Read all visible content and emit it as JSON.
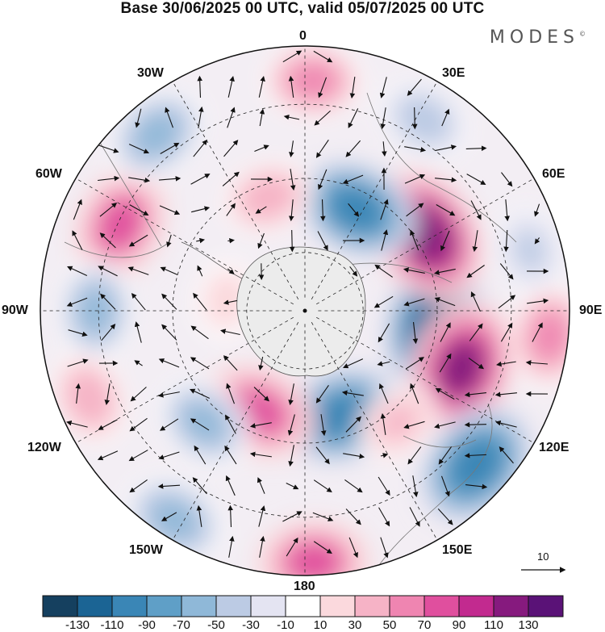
{
  "title": "Base 30/06/2025 00 UTC, valid 05/07/2025 00 UTC",
  "brand": "MODES",
  "brand_mark": "©",
  "longitude_labels": {
    "top": "0",
    "upper_right": "30E",
    "right_upper": "60E",
    "right": "90E",
    "right_lower": "120E",
    "lower_right": "150E",
    "bottom": "180",
    "lower_left": "150W",
    "left_lower": "120W",
    "left": "90W",
    "left_upper": "60W",
    "upper_left": "30W"
  },
  "vector_scale_label": "10",
  "colorbar": {
    "colors": [
      "#15405f",
      "#1b6494",
      "#3a86b6",
      "#5f9fc7",
      "#8fb8d8",
      "#bccbe4",
      "#e4e4f2",
      "#ffffff",
      "#fbd9dd",
      "#f6b3c6",
      "#ef85b1",
      "#e04f9e",
      "#c22a8f",
      "#861a7e",
      "#5a1277"
    ],
    "tick_labels": [
      "-130",
      "-110",
      "-90",
      "-70",
      "-50",
      "-30",
      "-10",
      "10",
      "30",
      "50",
      "70",
      "90",
      "110",
      "130"
    ]
  },
  "anomaly_centers": [
    {
      "lon_deg": 98,
      "r_frac": 0.5,
      "value": -130
    },
    {
      "lon_deg": 58,
      "r_frac": 0.54,
      "value": 120
    },
    {
      "lon_deg": 110,
      "r_frac": 0.63,
      "value": 115
    },
    {
      "lon_deg": 132,
      "r_frac": 0.87,
      "value": -110
    },
    {
      "lon_deg": 160,
      "r_frac": 0.42,
      "value": -100
    },
    {
      "lon_deg": 27,
      "r_frac": 0.43,
      "value": -95
    },
    {
      "lon_deg": 205,
      "r_frac": 0.42,
      "value": 85
    },
    {
      "lon_deg": 295,
      "r_frac": 0.77,
      "value": 80
    },
    {
      "lon_deg": 2,
      "r_frac": 0.87,
      "value": 55
    },
    {
      "lon_deg": 270,
      "r_frac": 0.79,
      "value": -55
    },
    {
      "lon_deg": 320,
      "r_frac": 0.87,
      "value": -65
    },
    {
      "lon_deg": 222,
      "r_frac": 0.57,
      "value": -55
    },
    {
      "lon_deg": 212,
      "r_frac": 0.93,
      "value": -65
    },
    {
      "lon_deg": 178,
      "r_frac": 0.95,
      "value": 75
    },
    {
      "lon_deg": 342,
      "r_frac": 0.45,
      "value": 40
    },
    {
      "lon_deg": 248,
      "r_frac": 0.88,
      "value": 45
    },
    {
      "lon_deg": 96,
      "r_frac": 0.93,
      "value": 60
    },
    {
      "lon_deg": 32,
      "r_frac": 0.85,
      "value": -45
    },
    {
      "lon_deg": 278,
      "r_frac": 0.3,
      "value": 20
    },
    {
      "lon_deg": 75,
      "r_frac": 0.88,
      "value": -35
    },
    {
      "lon_deg": 140,
      "r_frac": 0.55,
      "value": 30
    }
  ]
}
